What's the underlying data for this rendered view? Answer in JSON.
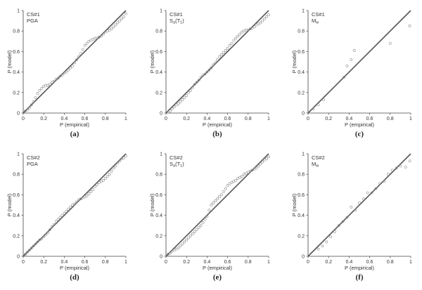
{
  "chart_data": [
    {
      "type": "scatter",
      "panel_label": "(a)",
      "annotation": [
        "CS#1",
        "PGA"
      ],
      "xlabel": "P (empirical)",
      "ylabel": "P (model)",
      "xlim": [
        0,
        1
      ],
      "ylim": [
        0,
        1
      ],
      "xticks": [
        "0",
        "0.2",
        "0.4",
        "0.6",
        "0.8",
        "1"
      ],
      "yticks": [
        "0",
        "0.2",
        "0.4",
        "0.6",
        "0.8",
        "1"
      ],
      "reference_line": [
        [
          0,
          0
        ],
        [
          1,
          1
        ]
      ],
      "series": [
        {
          "x": [
            0.02,
            0.04,
            0.06,
            0.08,
            0.1,
            0.12,
            0.14,
            0.16,
            0.18,
            0.2,
            0.22,
            0.24,
            0.26,
            0.28,
            0.3,
            0.32,
            0.34,
            0.36,
            0.38,
            0.4,
            0.42,
            0.44,
            0.46,
            0.48,
            0.5,
            0.52,
            0.54,
            0.56,
            0.58,
            0.6,
            0.62,
            0.64,
            0.66,
            0.68,
            0.7,
            0.72,
            0.74,
            0.76,
            0.78,
            0.8,
            0.82,
            0.84,
            0.86,
            0.88,
            0.9,
            0.92,
            0.94,
            0.96,
            0.98,
            1.0
          ],
          "y": [
            0.02,
            0.03,
            0.05,
            0.08,
            0.11,
            0.15,
            0.19,
            0.22,
            0.24,
            0.26,
            0.27,
            0.27,
            0.28,
            0.3,
            0.31,
            0.33,
            0.34,
            0.36,
            0.37,
            0.39,
            0.4,
            0.42,
            0.44,
            0.46,
            0.49,
            0.52,
            0.55,
            0.58,
            0.62,
            0.66,
            0.68,
            0.7,
            0.71,
            0.72,
            0.73,
            0.73,
            0.74,
            0.75,
            0.77,
            0.79,
            0.8,
            0.81,
            0.82,
            0.84,
            0.86,
            0.88,
            0.9,
            0.92,
            0.94,
            0.97
          ]
        }
      ]
    },
    {
      "type": "scatter",
      "panel_label": "(b)",
      "annotation": [
        "CS#1",
        "S",
        "a",
        "(T",
        "1",
        ")"
      ],
      "xlabel": "P (empirical)",
      "ylabel": "P (model)",
      "xlim": [
        0,
        1
      ],
      "ylim": [
        0,
        1
      ],
      "xticks": [
        "0",
        "0.2",
        "0.4",
        "0.6",
        "0.8",
        "1"
      ],
      "yticks": [
        "0",
        "0.2",
        "0.4",
        "0.6",
        "0.8",
        "1"
      ],
      "reference_line": [
        [
          0,
          0
        ],
        [
          1,
          1
        ]
      ],
      "series": [
        {
          "x": [
            0.02,
            0.04,
            0.06,
            0.08,
            0.1,
            0.12,
            0.14,
            0.16,
            0.18,
            0.2,
            0.22,
            0.24,
            0.26,
            0.28,
            0.3,
            0.32,
            0.34,
            0.36,
            0.38,
            0.4,
            0.42,
            0.44,
            0.46,
            0.48,
            0.5,
            0.52,
            0.54,
            0.56,
            0.58,
            0.6,
            0.62,
            0.64,
            0.66,
            0.68,
            0.7,
            0.72,
            0.74,
            0.76,
            0.78,
            0.8,
            0.82,
            0.84,
            0.86,
            0.88,
            0.9,
            0.92,
            0.94,
            0.96,
            0.98,
            1.0
          ],
          "y": [
            0.01,
            0.02,
            0.04,
            0.06,
            0.08,
            0.09,
            0.11,
            0.13,
            0.15,
            0.17,
            0.2,
            0.22,
            0.25,
            0.28,
            0.3,
            0.32,
            0.35,
            0.37,
            0.38,
            0.4,
            0.42,
            0.44,
            0.47,
            0.49,
            0.52,
            0.55,
            0.57,
            0.59,
            0.61,
            0.63,
            0.66,
            0.68,
            0.71,
            0.73,
            0.75,
            0.77,
            0.79,
            0.8,
            0.81,
            0.81,
            0.82,
            0.83,
            0.84,
            0.86,
            0.87,
            0.88,
            0.9,
            0.92,
            0.94,
            0.96
          ]
        }
      ]
    },
    {
      "type": "scatter",
      "panel_label": "(c)",
      "annotation": [
        "CS#1",
        "M",
        "w"
      ],
      "xlabel": "P (empirical)",
      "ylabel": "P (model)",
      "xlim": [
        0,
        1
      ],
      "ylim": [
        0,
        1
      ],
      "xticks": [
        "0",
        "0.2",
        "0.4",
        "0.6",
        "0.8",
        "1"
      ],
      "yticks": [
        "0",
        "0.2",
        "0.4",
        "0.6",
        "0.8",
        "1"
      ],
      "reference_line": [
        [
          0,
          0
        ],
        [
          1,
          1
        ]
      ],
      "series": [
        {
          "x": [
            0.05,
            0.1,
            0.15,
            0.35,
            0.38,
            0.42,
            0.45,
            0.8,
            0.99
          ],
          "y": [
            0.04,
            0.08,
            0.13,
            0.35,
            0.46,
            0.52,
            0.61,
            0.68,
            0.85
          ]
        }
      ]
    },
    {
      "type": "scatter",
      "panel_label": "(d)",
      "annotation": [
        "CS#2",
        "PGA"
      ],
      "xlabel": "P (empirical)",
      "ylabel": "P (model)",
      "xlim": [
        0,
        1
      ],
      "ylim": [
        0,
        1
      ],
      "xticks": [
        "0",
        "0.2",
        "0.4",
        "0.6",
        "0.8",
        "1"
      ],
      "yticks": [
        "0",
        "0.2",
        "0.4",
        "0.6",
        "0.8",
        "1"
      ],
      "reference_line": [
        [
          0,
          0
        ],
        [
          1,
          1
        ]
      ],
      "series": [
        {
          "x": [
            0.02,
            0.04,
            0.06,
            0.08,
            0.1,
            0.12,
            0.14,
            0.16,
            0.18,
            0.2,
            0.22,
            0.24,
            0.26,
            0.28,
            0.3,
            0.32,
            0.34,
            0.36,
            0.38,
            0.4,
            0.42,
            0.44,
            0.46,
            0.48,
            0.5,
            0.52,
            0.54,
            0.56,
            0.58,
            0.6,
            0.62,
            0.64,
            0.66,
            0.68,
            0.7,
            0.72,
            0.74,
            0.76,
            0.78,
            0.8,
            0.82,
            0.84,
            0.86,
            0.88,
            0.9,
            0.92,
            0.94,
            0.96,
            0.98,
            1.0
          ],
          "y": [
            0.02,
            0.04,
            0.06,
            0.08,
            0.1,
            0.12,
            0.14,
            0.16,
            0.17,
            0.19,
            0.21,
            0.23,
            0.26,
            0.29,
            0.31,
            0.34,
            0.36,
            0.38,
            0.4,
            0.42,
            0.44,
            0.46,
            0.48,
            0.5,
            0.51,
            0.53,
            0.55,
            0.56,
            0.57,
            0.58,
            0.59,
            0.61,
            0.63,
            0.65,
            0.68,
            0.7,
            0.72,
            0.73,
            0.74,
            0.76,
            0.78,
            0.8,
            0.83,
            0.86,
            0.88,
            0.91,
            0.93,
            0.95,
            0.96,
            0.98
          ]
        }
      ]
    },
    {
      "type": "scatter",
      "panel_label": "(e)",
      "annotation": [
        "CS#2",
        "S",
        "a",
        "(T",
        "1",
        ")"
      ],
      "xlabel": "P (empirical)",
      "ylabel": "P (model)",
      "xlim": [
        0,
        1
      ],
      "ylim": [
        0,
        1
      ],
      "xticks": [
        "0",
        "0.2",
        "0.4",
        "0.6",
        "0.8",
        "1"
      ],
      "yticks": [
        "0",
        "0.2",
        "0.4",
        "0.6",
        "0.8",
        "1"
      ],
      "reference_line": [
        [
          0,
          0
        ],
        [
          1,
          1
        ]
      ],
      "series": [
        {
          "x": [
            0.02,
            0.04,
            0.06,
            0.08,
            0.1,
            0.12,
            0.14,
            0.16,
            0.18,
            0.2,
            0.22,
            0.24,
            0.26,
            0.28,
            0.3,
            0.32,
            0.34,
            0.36,
            0.38,
            0.4,
            0.42,
            0.44,
            0.46,
            0.48,
            0.5,
            0.52,
            0.54,
            0.56,
            0.58,
            0.6,
            0.62,
            0.64,
            0.66,
            0.68,
            0.7,
            0.72,
            0.74,
            0.76,
            0.78,
            0.8,
            0.82,
            0.84,
            0.86,
            0.88,
            0.9,
            0.92,
            0.94,
            0.96,
            0.98,
            1.0
          ],
          "y": [
            0.02,
            0.03,
            0.05,
            0.06,
            0.07,
            0.08,
            0.1,
            0.12,
            0.14,
            0.16,
            0.18,
            0.2,
            0.22,
            0.24,
            0.26,
            0.28,
            0.3,
            0.33,
            0.36,
            0.39,
            0.45,
            0.5,
            0.52,
            0.54,
            0.56,
            0.58,
            0.6,
            0.63,
            0.66,
            0.69,
            0.71,
            0.72,
            0.73,
            0.74,
            0.76,
            0.77,
            0.78,
            0.8,
            0.81,
            0.82,
            0.83,
            0.84,
            0.85,
            0.86,
            0.88,
            0.9,
            0.92,
            0.94,
            0.95,
            0.97
          ]
        }
      ]
    },
    {
      "type": "scatter",
      "panel_label": "(f)",
      "annotation": [
        "CS#2",
        "M",
        "w"
      ],
      "xlabel": "P (empirical)",
      "ylabel": "P (model)",
      "xlim": [
        0,
        1
      ],
      "ylim": [
        0,
        1
      ],
      "xticks": [
        "0",
        "0.2",
        "0.4",
        "0.6",
        "0.8",
        "1"
      ],
      "yticks": [
        "0",
        "0.2",
        "0.4",
        "0.6",
        "0.8",
        "1"
      ],
      "reference_line": [
        [
          0,
          0
        ],
        [
          1,
          1
        ]
      ],
      "series": [
        {
          "x": [
            0.1,
            0.14,
            0.18,
            0.22,
            0.26,
            0.3,
            0.34,
            0.38,
            0.42,
            0.46,
            0.5,
            0.54,
            0.58,
            0.62,
            0.66,
            0.7,
            0.74,
            0.78,
            0.82,
            0.86,
            0.9,
            0.95,
            0.99
          ],
          "y": [
            0.07,
            0.1,
            0.14,
            0.19,
            0.24,
            0.3,
            0.34,
            0.38,
            0.48,
            0.45,
            0.52,
            0.56,
            0.62,
            0.62,
            0.66,
            0.71,
            0.73,
            0.8,
            0.84,
            0.86,
            0.88,
            0.87,
            0.93
          ]
        }
      ]
    }
  ]
}
